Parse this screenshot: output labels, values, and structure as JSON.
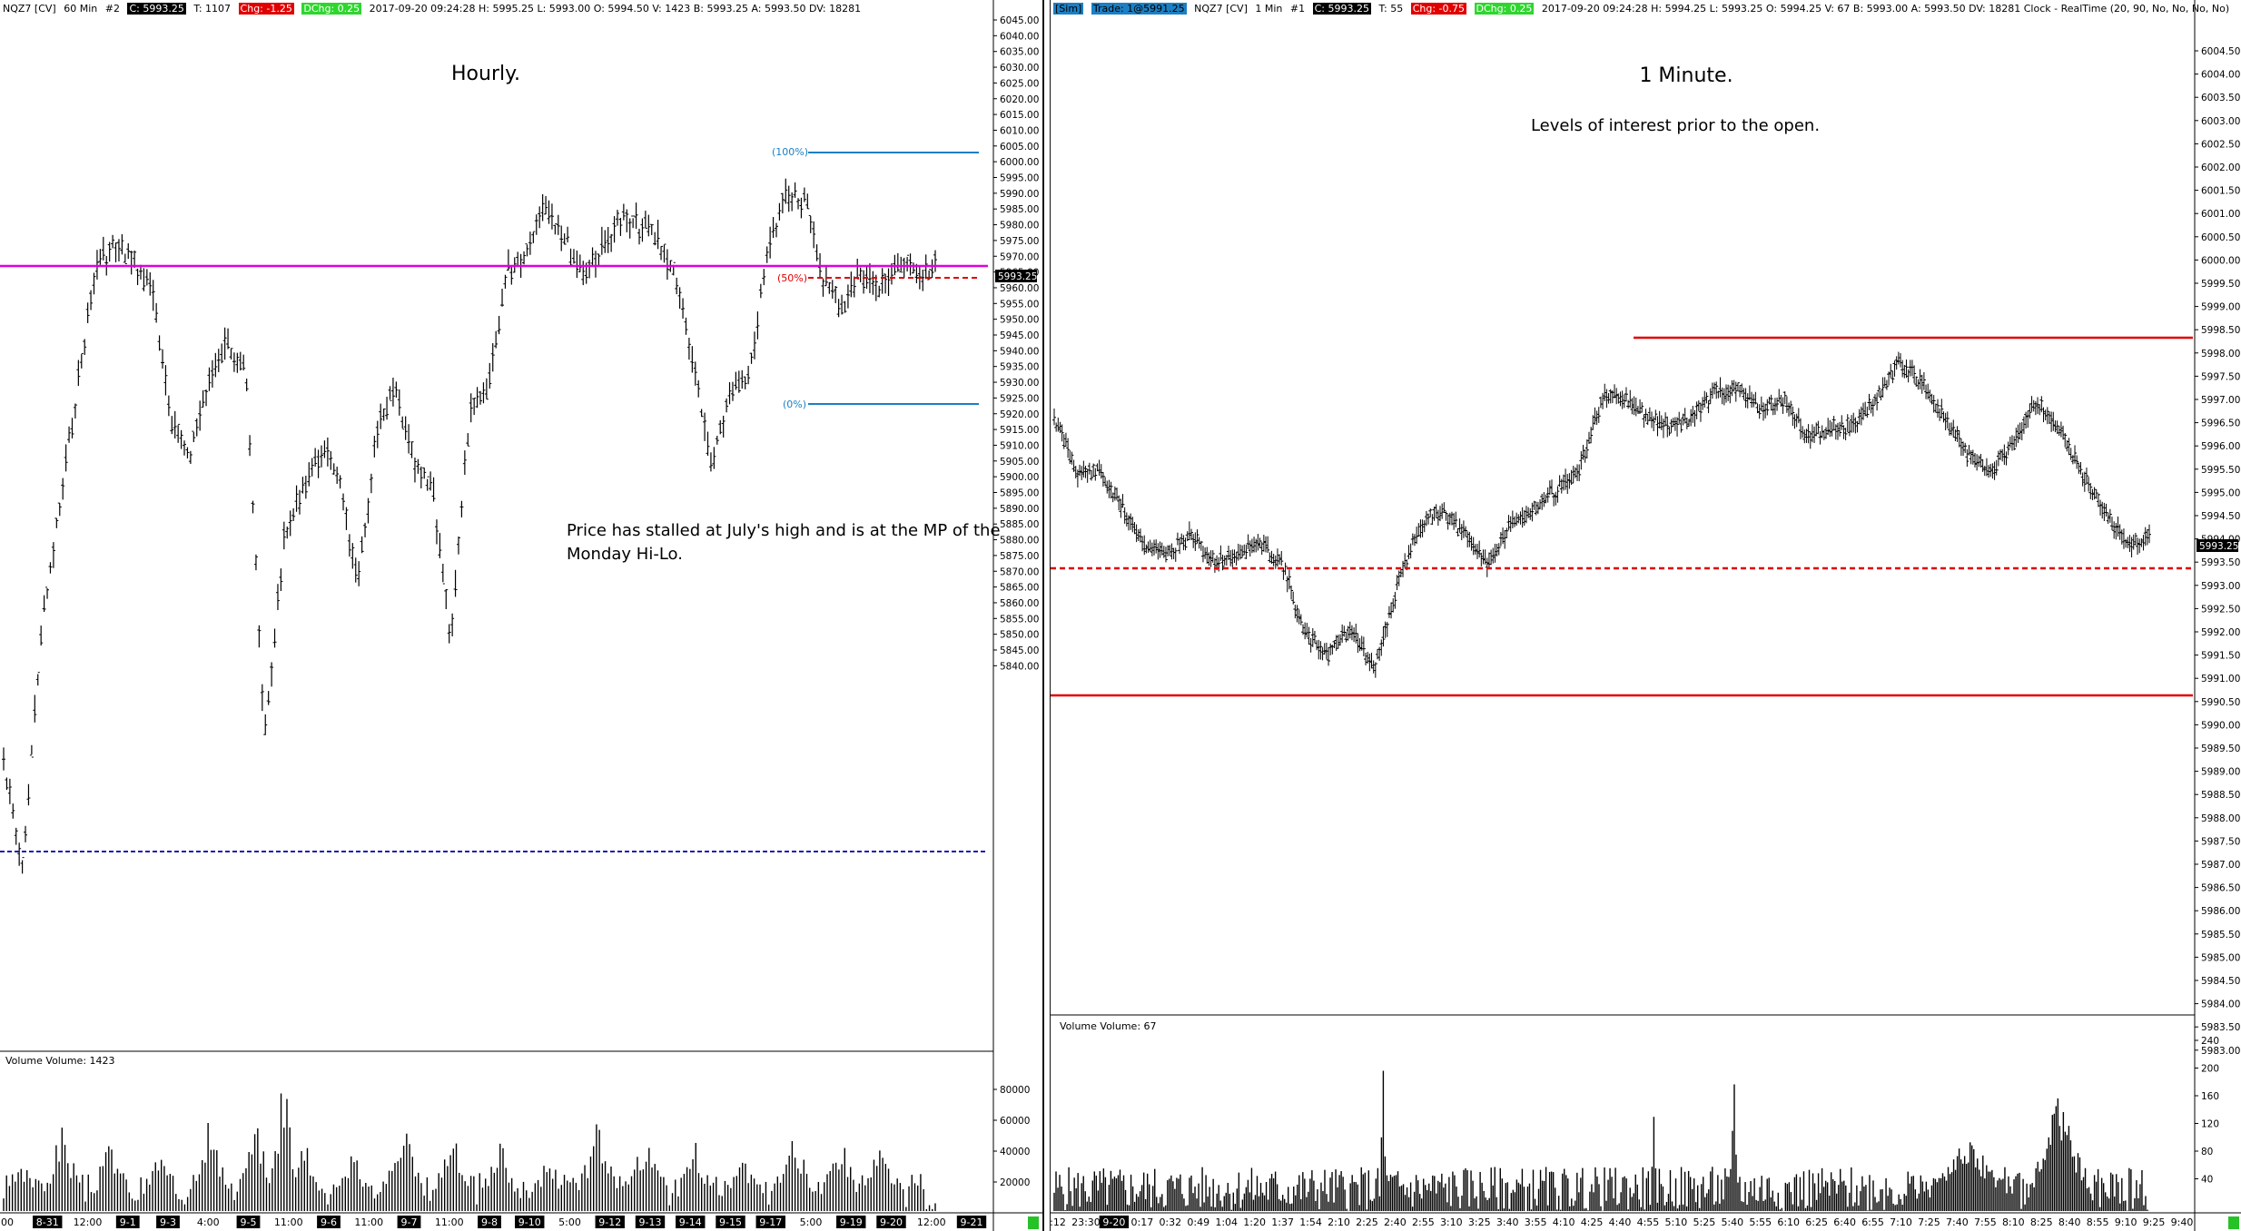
{
  "left": {
    "infobar": {
      "symbol": "NQZ7 [CV]",
      "interval": "60 Min",
      "id": "#2",
      "close": "C: 5993.25",
      "trades": "T: 1107",
      "chg": "Chg: -1.25",
      "dchg": "DChg: 0.25",
      "rest": "2017-09-20 09:24:28 H: 5995.25 L: 5993.00 O: 5994.50 V: 1423 B: 5993.25 A: 5993.50 DV: 18281"
    },
    "title": "Hourly.",
    "note_lines": [
      "Price has stalled at July's high and is at the MP of the",
      "Monday Hi-Lo."
    ],
    "fib_labels": {
      "top": "(100%)",
      "mid": "(50%)",
      "bottom": "(0%)"
    },
    "price_tag": "5993.25",
    "volume_label": "Volume  Volume: 1423",
    "y_ticks": [
      "6045.00",
      "6040.00",
      "6035.00",
      "6030.00",
      "6025.00",
      "6020.00",
      "6015.00",
      "6010.00",
      "6005.00",
      "6000.00",
      "5995.00",
      "5990.00",
      "5985.00",
      "5980.00",
      "5975.00",
      "5970.00",
      "5965.00",
      "5960.00",
      "5955.00",
      "5950.00",
      "5945.00",
      "5940.00",
      "5935.00",
      "5930.00",
      "5925.00",
      "5920.00",
      "5915.00",
      "5910.00",
      "5905.00",
      "5900.00",
      "5895.00",
      "5890.00",
      "5885.00",
      "5880.00",
      "5875.00",
      "5870.00",
      "5865.00",
      "5860.00",
      "5855.00",
      "5850.00",
      "5845.00",
      "5840.00"
    ],
    "vol_ticks": [
      "80000",
      "60000",
      "40000",
      "20000"
    ],
    "x_ticks": [
      {
        "label": "00",
        "hl": false
      },
      {
        "label": "8-31",
        "hl": true
      },
      {
        "label": "12:00",
        "hl": false
      },
      {
        "label": "9-1",
        "hl": true
      },
      {
        "label": "9-3",
        "hl": true
      },
      {
        "label": "4:00",
        "hl": false
      },
      {
        "label": "9-5",
        "hl": true
      },
      {
        "label": "11:00",
        "hl": false
      },
      {
        "label": "9-6",
        "hl": true
      },
      {
        "label": "11:00",
        "hl": false
      },
      {
        "label": "9-7",
        "hl": true
      },
      {
        "label": "11:00",
        "hl": false
      },
      {
        "label": "9-8",
        "hl": true
      },
      {
        "label": "9-10",
        "hl": true
      },
      {
        "label": "5:00",
        "hl": false
      },
      {
        "label": "9-12",
        "hl": true
      },
      {
        "label": "9-13",
        "hl": true
      },
      {
        "label": "9-14",
        "hl": true
      },
      {
        "label": "9-15",
        "hl": true
      },
      {
        "label": "9-17",
        "hl": true
      },
      {
        "label": "5:00",
        "hl": false
      },
      {
        "label": "9-19",
        "hl": true
      },
      {
        "label": "9-20",
        "hl": true
      },
      {
        "label": "12:00",
        "hl": false
      },
      {
        "label": "9-21",
        "hl": true
      }
    ]
  },
  "right": {
    "infobar": {
      "sim": "[Sim]",
      "trade": "Trade: 1@5991.25",
      "symbol": "NQZ7 [CV]",
      "interval": "1 Min",
      "id": "#1",
      "close": "C: 5993.25",
      "trades": "T: 55",
      "chg": "Chg: -0.75",
      "dchg": "DChg: 0.25",
      "rest": "2017-09-20 09:24:28 H: 5994.25 L: 5993.25 O: 5994.25 V: 67 B: 5993.00 A: 5993.50 DV: 18281 Clock - RealTime  (20, 90, No, No, No, No)"
    },
    "title": "1 Minute.",
    "subtitle": "Levels of interest prior to the open.",
    "price_tag": "5993.25",
    "volume_label": "Volume  Volume: 67",
    "y_ticks": [
      "6004.50",
      "6004.00",
      "6003.50",
      "6003.00",
      "6002.50",
      "6002.00",
      "6001.50",
      "6001.00",
      "6000.50",
      "6000.00",
      "5999.50",
      "5999.00",
      "5998.50",
      "5998.00",
      "5997.50",
      "5997.00",
      "5996.50",
      "5996.00",
      "5995.50",
      "5995.00",
      "5994.50",
      "5994.00",
      "5993.50",
      "5993.00",
      "5992.50",
      "5992.00",
      "5991.50",
      "5991.00",
      "5990.50",
      "5990.00",
      "5989.50",
      "5989.00",
      "5988.50",
      "5988.00",
      "5987.50",
      "5987.00",
      "5986.50",
      "5986.00",
      "5985.50",
      "5985.00",
      "5984.50",
      "5984.00",
      "5983.50",
      "5983.00"
    ],
    "vol_ticks": [
      "240",
      "200",
      "160",
      "120",
      "80",
      "40"
    ],
    "x_ticks": [
      {
        "label": ":12",
        "hl": false
      },
      {
        "label": "23:30",
        "hl": false
      },
      {
        "label": "9-20",
        "hl": true
      },
      {
        "label": "0:17",
        "hl": false
      },
      {
        "label": "0:32",
        "hl": false
      },
      {
        "label": "0:49",
        "hl": false
      },
      {
        "label": "1:04",
        "hl": false
      },
      {
        "label": "1:20",
        "hl": false
      },
      {
        "label": "1:37",
        "hl": false
      },
      {
        "label": "1:54",
        "hl": false
      },
      {
        "label": "2:10",
        "hl": false
      },
      {
        "label": "2:25",
        "hl": false
      },
      {
        "label": "2:40",
        "hl": false
      },
      {
        "label": "2:55",
        "hl": false
      },
      {
        "label": "3:10",
        "hl": false
      },
      {
        "label": "3:25",
        "hl": false
      },
      {
        "label": "3:40",
        "hl": false
      },
      {
        "label": "3:55",
        "hl": false
      },
      {
        "label": "4:10",
        "hl": false
      },
      {
        "label": "4:25",
        "hl": false
      },
      {
        "label": "4:40",
        "hl": false
      },
      {
        "label": "4:55",
        "hl": false
      },
      {
        "label": "5:10",
        "hl": false
      },
      {
        "label": "5:25",
        "hl": false
      },
      {
        "label": "5:40",
        "hl": false
      },
      {
        "label": "5:55",
        "hl": false
      },
      {
        "label": "6:10",
        "hl": false
      },
      {
        "label": "6:25",
        "hl": false
      },
      {
        "label": "6:40",
        "hl": false
      },
      {
        "label": "6:55",
        "hl": false
      },
      {
        "label": "7:10",
        "hl": false
      },
      {
        "label": "7:25",
        "hl": false
      },
      {
        "label": "7:40",
        "hl": false
      },
      {
        "label": "7:55",
        "hl": false
      },
      {
        "label": "8:10",
        "hl": false
      },
      {
        "label": "8:25",
        "hl": false
      },
      {
        "label": "8:40",
        "hl": false
      },
      {
        "label": "8:55",
        "hl": false
      },
      {
        "label": "9:10",
        "hl": false
      },
      {
        "label": "9:25",
        "hl": false
      },
      {
        "label": "9:40",
        "hl": false
      }
    ]
  },
  "colors": {
    "magenta_line": "#e000e0",
    "blue_dotted": "#1a1ab0",
    "red_line": "#e00000",
    "fib_blue": "#1c7fc4",
    "fib_red": "#e00000",
    "bar": "#000000"
  }
}
